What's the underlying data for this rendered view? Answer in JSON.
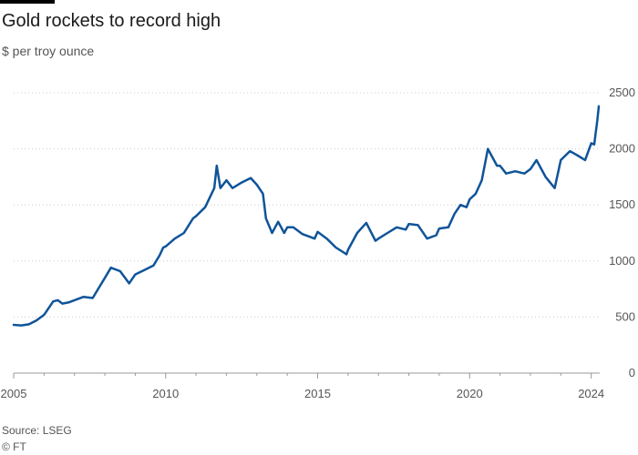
{
  "header": {
    "title": "Gold rockets to record high",
    "subtitle": "$ per troy ounce"
  },
  "footer": {
    "source": "Source: LSEG",
    "credit": "© FT"
  },
  "colors": {
    "line": "#0f5499",
    "grid": "#cccccc",
    "text": "#555555"
  },
  "chart_data": {
    "type": "line",
    "title": "Gold rockets to record high",
    "subtitle": "$ per troy ounce",
    "xlabel": "",
    "ylabel": "",
    "xlim": [
      2005,
      2024.1
    ],
    "ylim": [
      0,
      2500
    ],
    "x_ticks": [
      2005,
      2010,
      2015,
      2020,
      2024
    ],
    "x_tick_labels": [
      "2005",
      "2010",
      "2015",
      "2020",
      "2024"
    ],
    "y_ticks": [
      0,
      500,
      1000,
      1500,
      2000,
      2500
    ],
    "y_tick_labels": [
      "0",
      "500",
      "1000",
      "1500",
      "2000",
      "2500"
    ],
    "y_axis_side": "right",
    "grid": "horizontal dotted",
    "series": [
      {
        "x": [
          2005.0,
          2005.25,
          2005.5,
          2005.75,
          2006.0,
          2006.3,
          2006.45,
          2006.6,
          2006.8,
          2007.0,
          2007.3,
          2007.6,
          2007.8,
          2008.0,
          2008.2,
          2008.5,
          2008.8,
          2009.0,
          2009.3,
          2009.6,
          2009.8,
          2009.92,
          2010.0,
          2010.3,
          2010.6,
          2010.9,
          2011.0,
          2011.3,
          2011.6,
          2011.68,
          2011.8,
          2012.0,
          2012.2,
          2012.5,
          2012.8,
          2013.0,
          2013.2,
          2013.3,
          2013.5,
          2013.7,
          2013.9,
          2014.0,
          2014.2,
          2014.5,
          2014.9,
          2015.0,
          2015.3,
          2015.6,
          2015.95,
          2016.0,
          2016.3,
          2016.6,
          2016.9,
          2017.0,
          2017.3,
          2017.6,
          2017.9,
          2018.0,
          2018.3,
          2018.6,
          2018.9,
          2019.0,
          2019.3,
          2019.5,
          2019.7,
          2019.9,
          2020.0,
          2020.2,
          2020.4,
          2020.6,
          2020.9,
          2021.0,
          2021.2,
          2021.5,
          2021.8,
          2022.0,
          2022.2,
          2022.5,
          2022.8,
          2023.0,
          2023.3,
          2023.5,
          2023.8,
          2024.0,
          2024.1,
          2024.15,
          2024.2,
          2024.25
        ],
        "values": [
          430,
          425,
          435,
          470,
          520,
          640,
          650,
          620,
          630,
          650,
          680,
          670,
          760,
          850,
          940,
          910,
          800,
          880,
          920,
          960,
          1050,
          1120,
          1130,
          1200,
          1250,
          1380,
          1400,
          1480,
          1650,
          1850,
          1650,
          1720,
          1650,
          1700,
          1740,
          1680,
          1600,
          1380,
          1250,
          1350,
          1250,
          1300,
          1300,
          1240,
          1200,
          1260,
          1200,
          1120,
          1060,
          1100,
          1250,
          1340,
          1180,
          1200,
          1250,
          1300,
          1280,
          1330,
          1320,
          1200,
          1230,
          1290,
          1300,
          1420,
          1500,
          1480,
          1550,
          1600,
          1720,
          2000,
          1850,
          1850,
          1780,
          1800,
          1780,
          1820,
          1900,
          1750,
          1650,
          1900,
          1980,
          1950,
          1900,
          2050,
          2040,
          2150,
          2250,
          2380
        ]
      }
    ]
  }
}
